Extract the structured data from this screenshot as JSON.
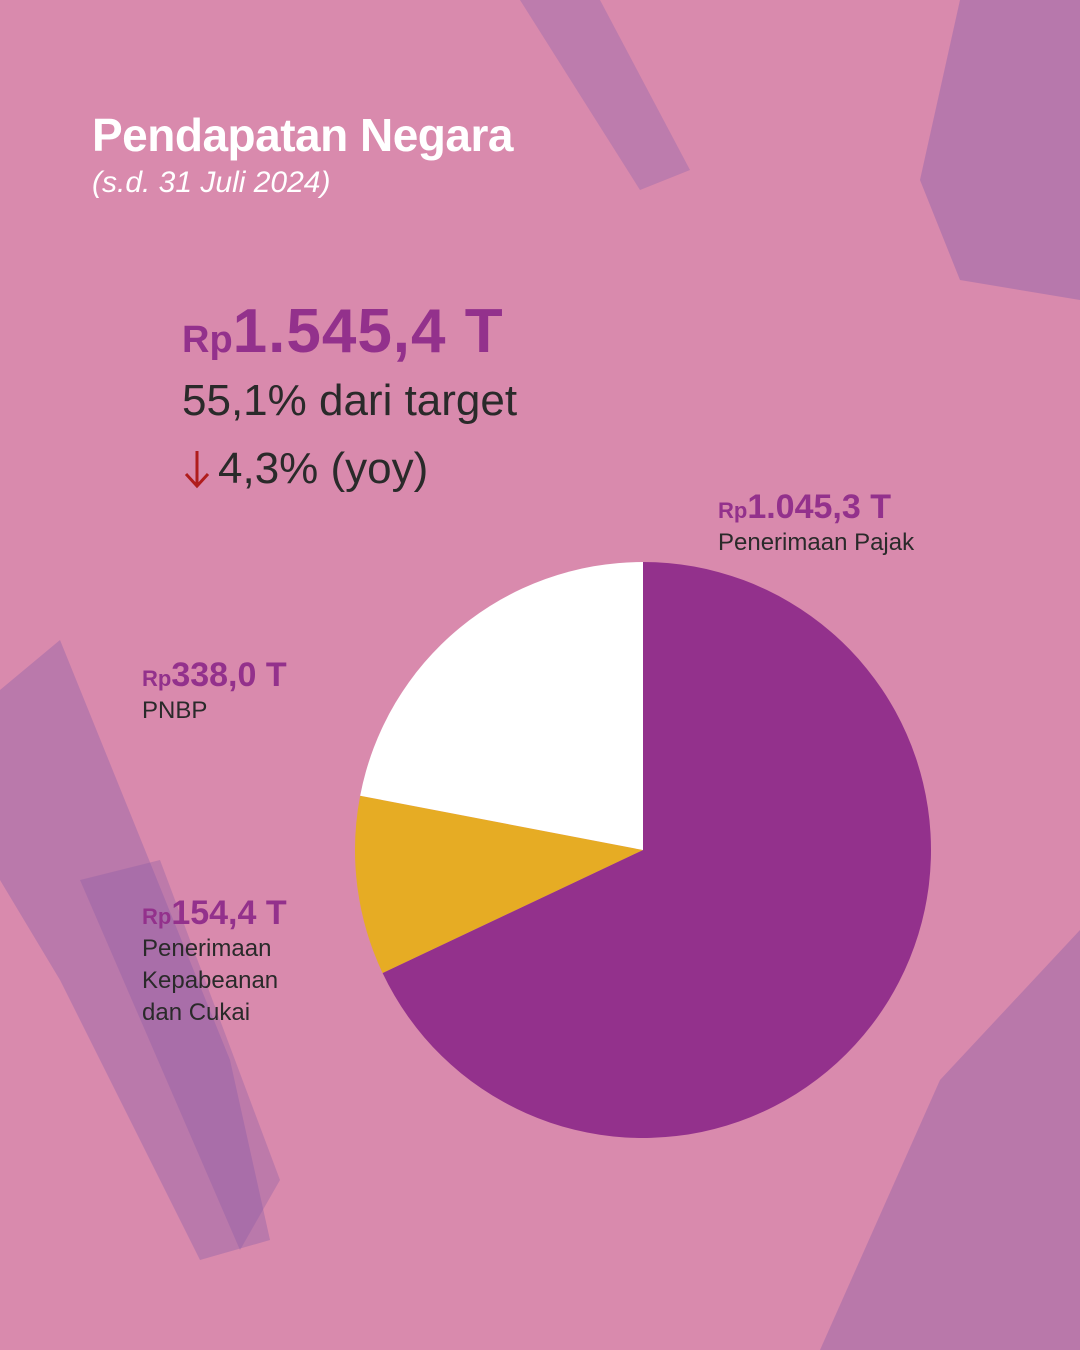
{
  "header": {
    "title": "Pendapatan Negara",
    "subtitle": "(s.d. 31 Juli 2024)"
  },
  "summary": {
    "currency": "Rp",
    "total": "1.545,4 T",
    "target_pct": "55,1% dari target",
    "yoy": "4,3% (yoy)",
    "yoy_direction": "down",
    "yoy_color": "#b01c1c"
  },
  "chart_data": {
    "type": "pie",
    "unit": "T",
    "slices": [
      {
        "currency": "Rp",
        "amount": "1.045,3 T",
        "label": "Penerimaan Pajak",
        "value": 1045.3,
        "color": "#93318c"
      },
      {
        "currency": "Rp",
        "amount": "154,4 T",
        "label_lines": [
          "Penerimaan",
          "Kepabeanan",
          "dan Cukai"
        ],
        "value": 154.4,
        "color": "#e6ac24"
      },
      {
        "currency": "Rp",
        "amount": "338,0 T",
        "label": "PNBP",
        "value": 338.0,
        "color": "#ffffff"
      }
    ]
  },
  "colors": {
    "background": "#d98aad",
    "accent": "#93318c",
    "brush": "#9b6aae"
  }
}
